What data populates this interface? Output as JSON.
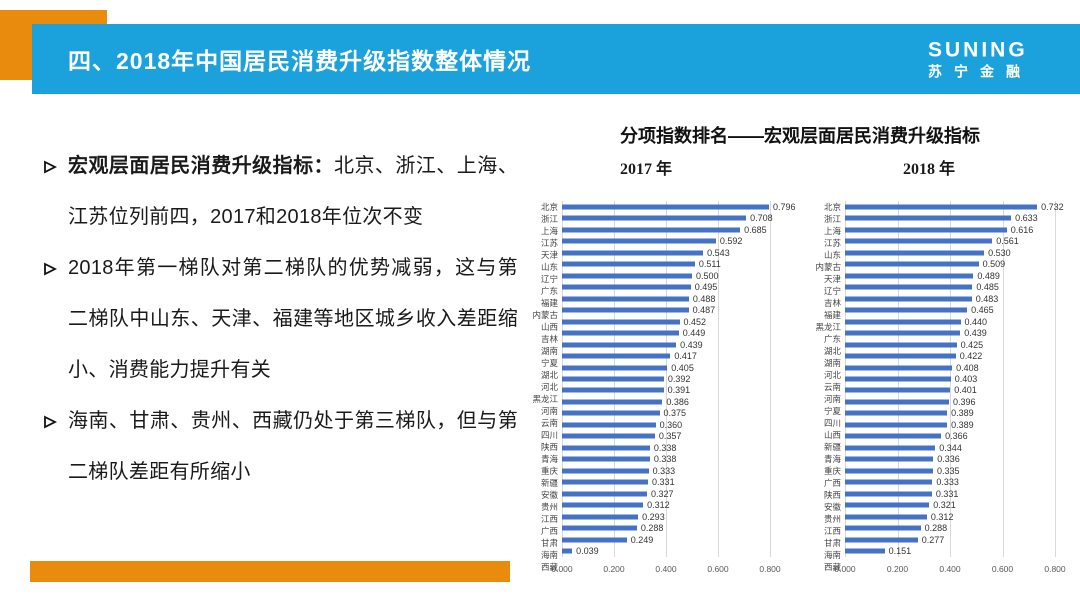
{
  "slide": {
    "header": {
      "title": "四、2018年中国居民消费升级指数整体情况",
      "logo_primary": "SUNING",
      "logo_secondary": "苏宁金融"
    },
    "bullets": [
      {
        "lead": "宏观层面居民消费升级指标：",
        "text": "北京、浙江、上海、江苏位列前四，2017和2018年位次不变"
      },
      {
        "lead": "",
        "text": "2018年第一梯队对第二梯队的优势减弱，这与第二梯队中山东、天津、福建等地区城乡收入差距缩小、消费能力提升有关"
      },
      {
        "lead": "",
        "text": "海南、甘肃、贵州、西藏仍处于第三梯队，但与第二梯队差距有所缩小"
      }
    ],
    "charts_title": "分项指数排名——宏观层面居民消费升级指标"
  },
  "chart_data": [
    {
      "type": "bar",
      "orientation": "horizontal",
      "title": "2017 年",
      "categories": [
        "北京",
        "浙江",
        "上海",
        "江苏",
        "天津",
        "山东",
        "辽宁",
        "广东",
        "福建",
        "内蒙古",
        "山西",
        "吉林",
        "湖南",
        "宁夏",
        "湖北",
        "河北",
        "黑龙江",
        "河南",
        "云南",
        "四川",
        "陕西",
        "青海",
        "重庆",
        "新疆",
        "安徽",
        "贵州",
        "江西",
        "广西",
        "甘肃",
        "海南",
        "西藏"
      ],
      "values": [
        0.796,
        0.708,
        0.685,
        0.592,
        0.543,
        0.511,
        0.5,
        0.495,
        0.488,
        0.487,
        0.452,
        0.449,
        0.439,
        0.417,
        0.405,
        0.392,
        0.391,
        0.386,
        0.375,
        0.36,
        0.357,
        0.338,
        0.338,
        0.333,
        0.331,
        0.327,
        0.312,
        0.293,
        0.288,
        0.249,
        0.039
      ],
      "xlabel": "",
      "ylabel": "",
      "xlim": [
        0,
        0.8
      ],
      "xticks": [
        "0.000",
        "0.200",
        "0.400",
        "0.600",
        "0.800"
      ],
      "grid": true,
      "legend": false,
      "data_labels": true
    },
    {
      "type": "bar",
      "orientation": "horizontal",
      "title": "2018 年",
      "categories": [
        "北京",
        "浙江",
        "上海",
        "江苏",
        "山东",
        "内蒙古",
        "天津",
        "辽宁",
        "吉林",
        "福建",
        "黑龙江",
        "广东",
        "湖北",
        "湖南",
        "河北",
        "云南",
        "河南",
        "宁夏",
        "四川",
        "山西",
        "新疆",
        "青海",
        "重庆",
        "广西",
        "陕西",
        "安徽",
        "贵州",
        "江西",
        "甘肃",
        "海南",
        "西藏"
      ],
      "values": [
        0.732,
        0.633,
        0.616,
        0.561,
        0.53,
        0.509,
        0.489,
        0.485,
        0.483,
        0.465,
        0.44,
        0.439,
        0.425,
        0.422,
        0.408,
        0.403,
        0.401,
        0.396,
        0.389,
        0.389,
        0.366,
        0.344,
        0.336,
        0.335,
        0.333,
        0.331,
        0.321,
        0.312,
        0.288,
        0.277,
        0.151
      ],
      "xlabel": "",
      "ylabel": "",
      "xlim": [
        0,
        0.8
      ],
      "xticks": [
        "0.000",
        "0.200",
        "0.400",
        "0.600",
        "0.800"
      ],
      "grid": true,
      "legend": false,
      "data_labels": true
    }
  ],
  "colors": {
    "accent_orange": "#E98B0D",
    "header_blue": "#1BA1DC",
    "bar_blue": "#4472C4",
    "gridline": "#D9D9D9"
  }
}
